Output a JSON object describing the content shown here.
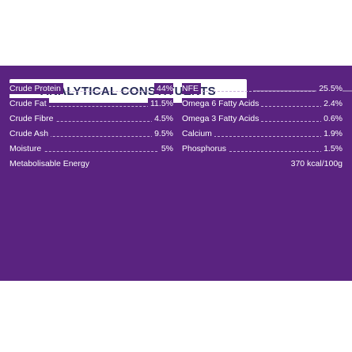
{
  "title": "ANALYTICAL CONSTITUENTS",
  "left_column": [
    {
      "label": "Crude Protein",
      "value": "44%"
    },
    {
      "label": "Crude Fat",
      "value": "11.5%"
    },
    {
      "label": "Crude Fibre",
      "value": "4.5%"
    },
    {
      "label": "Crude Ash",
      "value": "9.5%"
    },
    {
      "label": "Moisture",
      "value": "5%"
    },
    {
      "label": "Metabolisable Energy",
      "value": ""
    }
  ],
  "right_column": [
    {
      "label": "NFE",
      "value": "25.5%"
    },
    {
      "label": "Omega 6 Fatty Acids",
      "value": "2.4%"
    },
    {
      "label": "Omega 3 Fatty Acids",
      "value": "0.6%"
    },
    {
      "label": "Calcium",
      "value": "1.9%"
    },
    {
      "label": "Phosphorus",
      "value": "1.5%"
    },
    {
      "label": "",
      "value": "370 kcal/100g"
    }
  ],
  "colors": {
    "panel_background": "#5a2380",
    "title_text": "#262a56",
    "row_text": "#ffffff",
    "leader_line": "#c9b2da"
  }
}
